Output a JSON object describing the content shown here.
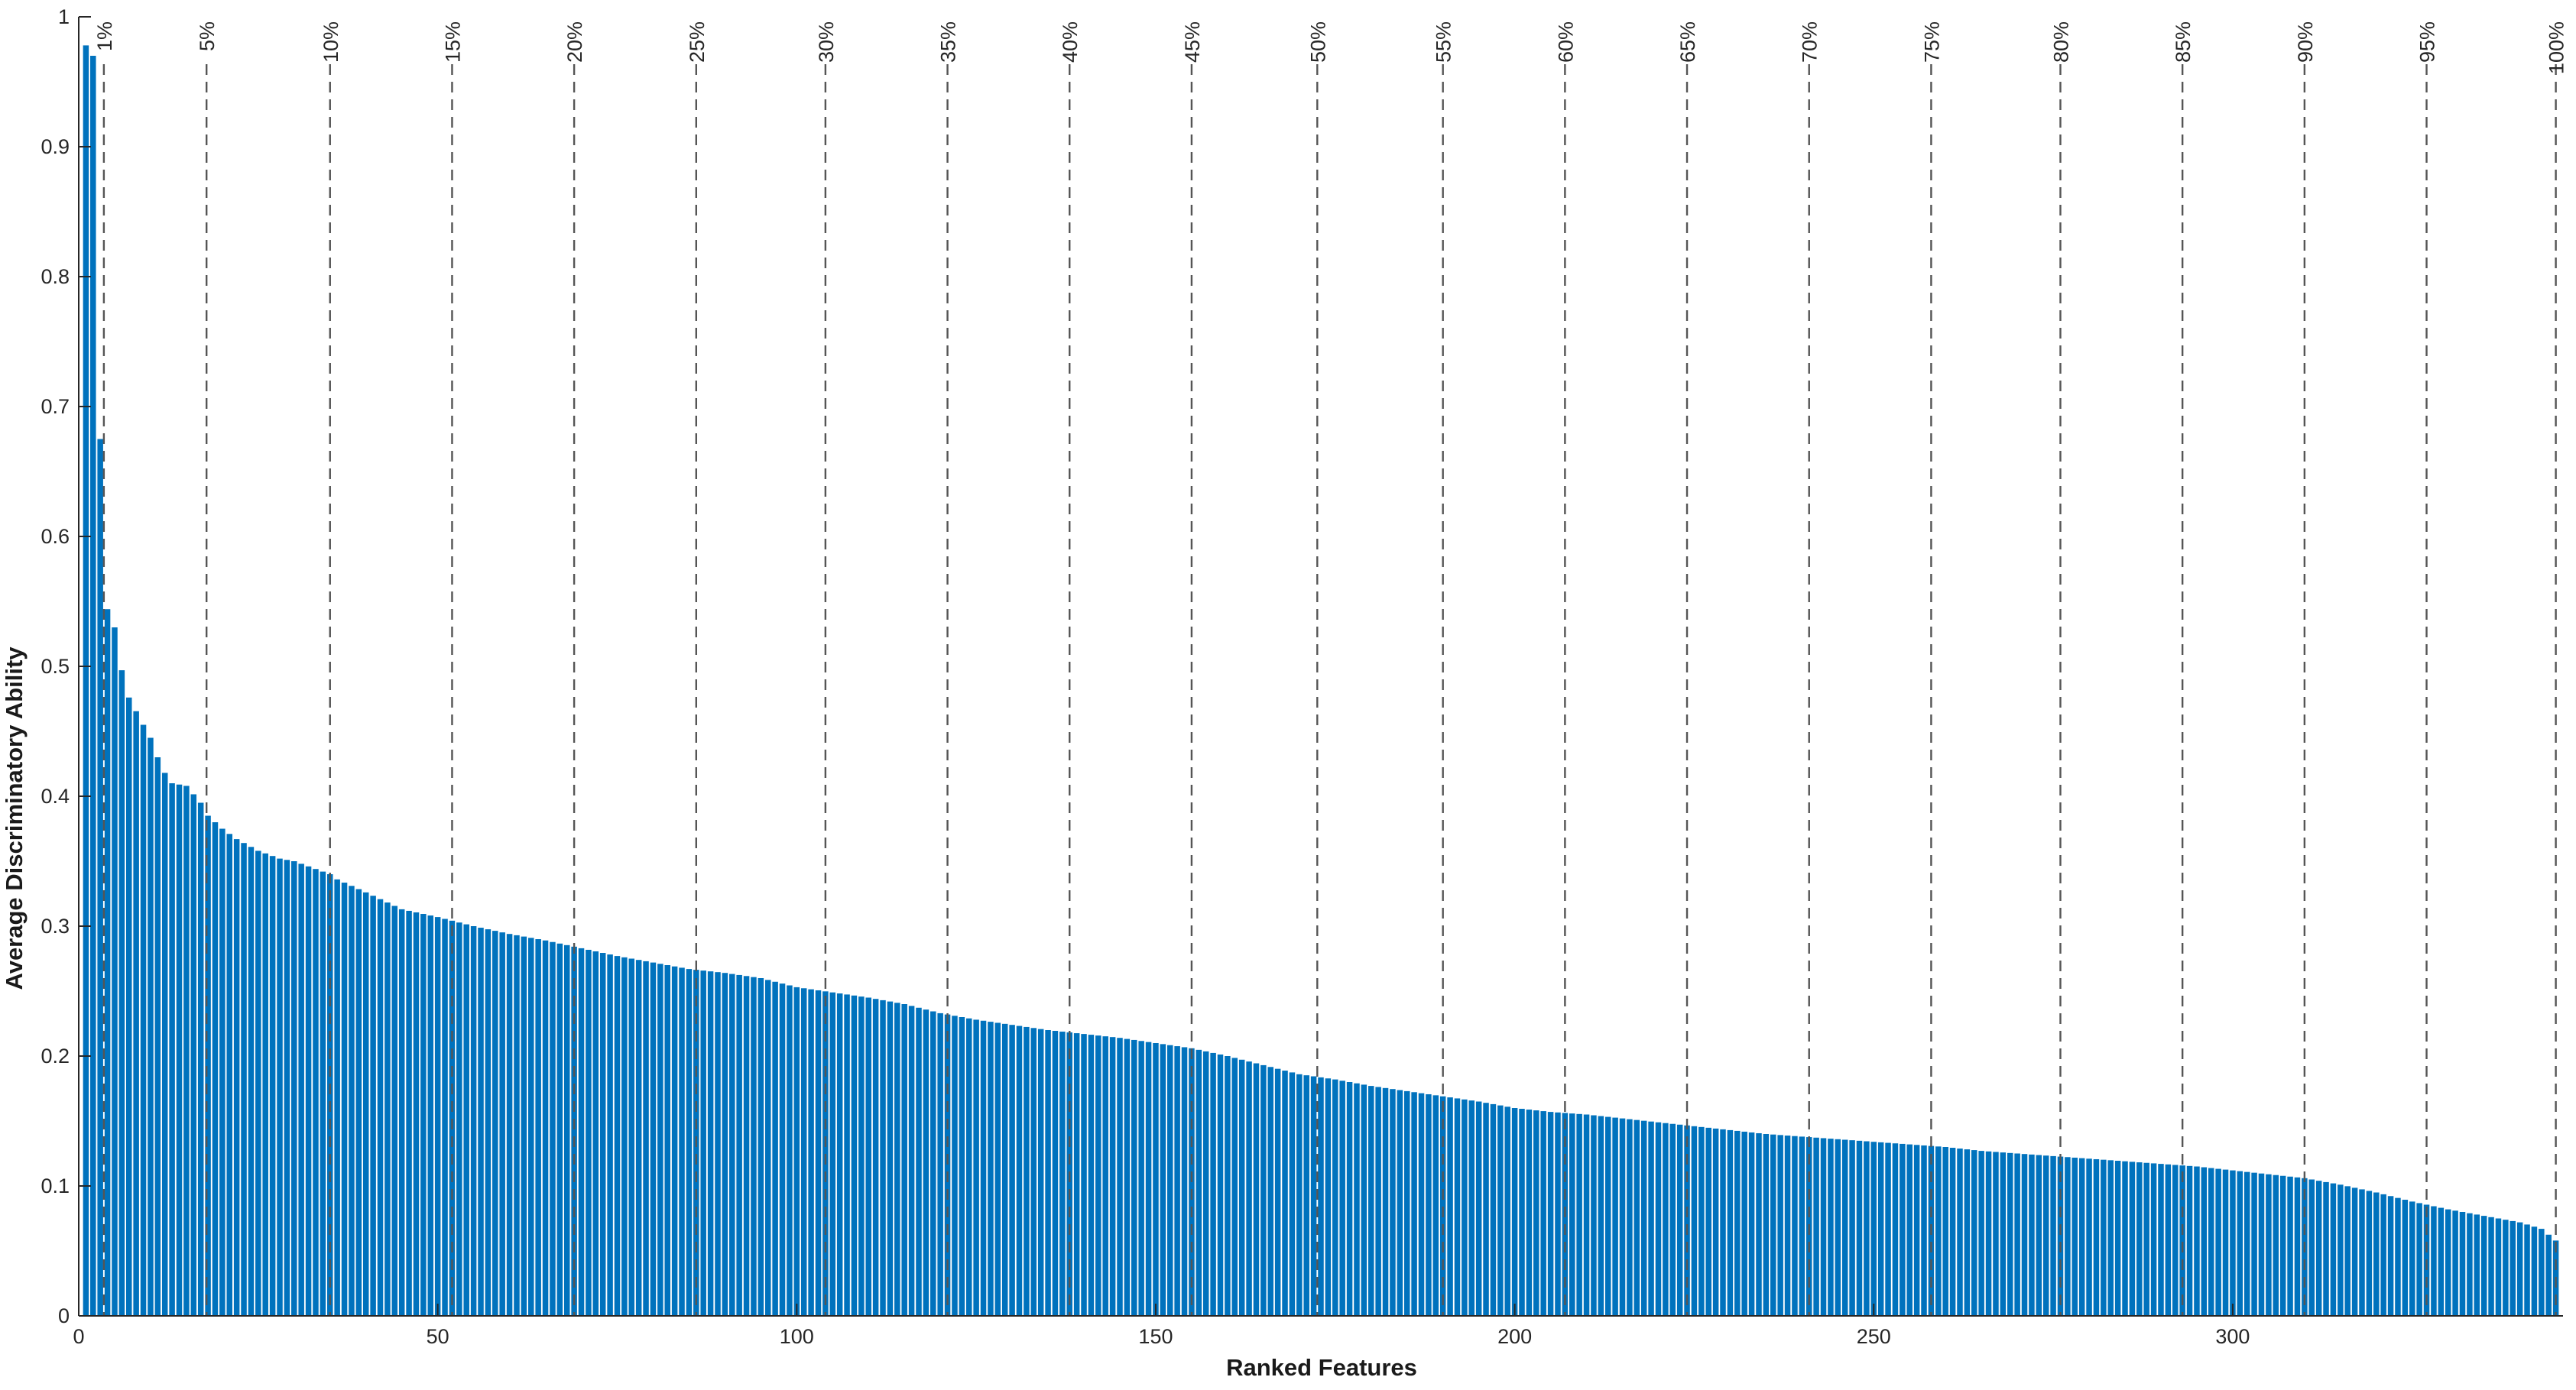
{
  "chart_data": {
    "type": "bar",
    "title": "",
    "xlabel": "Ranked Features",
    "ylabel": "Average Discriminatory Ability",
    "xlim": [
      0,
      346
    ],
    "ylim": [
      0,
      1
    ],
    "x_ticks": [
      0,
      50,
      100,
      150,
      200,
      250,
      300
    ],
    "y_ticks": [
      0,
      0.1,
      0.2,
      0.3,
      0.4,
      0.5,
      0.6,
      0.7,
      0.8,
      0.9,
      1
    ],
    "y_tick_labels": [
      "0",
      "0.1",
      "0.2",
      "0.3",
      "0.4",
      "0.5",
      "0.6",
      "0.7",
      "0.8",
      "0.9",
      "1"
    ],
    "bar_color": "#0072BD",
    "grid": false,
    "n_features": 345,
    "values_anchor_points": {
      "rank": [
        1,
        2,
        3,
        4,
        5,
        6,
        7,
        9,
        10,
        11,
        12,
        13,
        15,
        17,
        18,
        19,
        20,
        22,
        25,
        28,
        30,
        32,
        35,
        36,
        40,
        45,
        50,
        55,
        60,
        65,
        70,
        75,
        80,
        85,
        90,
        95,
        100,
        105,
        110,
        115,
        120,
        125,
        130,
        135,
        140,
        145,
        150,
        155,
        160,
        165,
        170,
        175,
        180,
        185,
        190,
        195,
        200,
        205,
        210,
        215,
        220,
        225,
        230,
        235,
        240,
        245,
        250,
        255,
        260,
        265,
        270,
        275,
        280,
        285,
        290,
        295,
        300,
        305,
        310,
        315,
        320,
        325,
        330,
        335,
        340,
        343,
        345
      ],
      "value": [
        0.978,
        0.97,
        0.675,
        0.544,
        0.53,
        0.497,
        0.476,
        0.455,
        0.445,
        0.43,
        0.418,
        0.41,
        0.408,
        0.395,
        0.385,
        0.38,
        0.375,
        0.367,
        0.358,
        0.352,
        0.35,
        0.346,
        0.34,
        0.336,
        0.326,
        0.313,
        0.307,
        0.3,
        0.294,
        0.289,
        0.283,
        0.277,
        0.272,
        0.267,
        0.264,
        0.26,
        0.253,
        0.249,
        0.245,
        0.24,
        0.233,
        0.228,
        0.224,
        0.22,
        0.217,
        0.214,
        0.21,
        0.206,
        0.2,
        0.193,
        0.186,
        0.182,
        0.177,
        0.173,
        0.169,
        0.165,
        0.16,
        0.157,
        0.155,
        0.152,
        0.149,
        0.146,
        0.143,
        0.14,
        0.138,
        0.136,
        0.134,
        0.132,
        0.13,
        0.127,
        0.125,
        0.123,
        0.121,
        0.119,
        0.117,
        0.115,
        0.112,
        0.109,
        0.106,
        0.101,
        0.095,
        0.088,
        0.082,
        0.077,
        0.072,
        0.067,
        0.058
      ]
    },
    "percentile_markers": [
      {
        "label": "1%",
        "x": 3.5
      },
      {
        "label": "5%",
        "x": 17.8
      },
      {
        "label": "10%",
        "x": 35
      },
      {
        "label": "15%",
        "x": 52
      },
      {
        "label": "20%",
        "x": 69
      },
      {
        "label": "25%",
        "x": 86
      },
      {
        "label": "30%",
        "x": 104
      },
      {
        "label": "35%",
        "x": 121
      },
      {
        "label": "40%",
        "x": 138
      },
      {
        "label": "45%",
        "x": 155
      },
      {
        "label": "50%",
        "x": 172.5
      },
      {
        "label": "55%",
        "x": 190
      },
      {
        "label": "60%",
        "x": 207
      },
      {
        "label": "65%",
        "x": 224
      },
      {
        "label": "70%",
        "x": 241
      },
      {
        "label": "75%",
        "x": 258
      },
      {
        "label": "80%",
        "x": 276
      },
      {
        "label": "85%",
        "x": 293
      },
      {
        "label": "90%",
        "x": 310
      },
      {
        "label": "95%",
        "x": 327
      },
      {
        "label": "100%",
        "x": 345
      }
    ]
  }
}
